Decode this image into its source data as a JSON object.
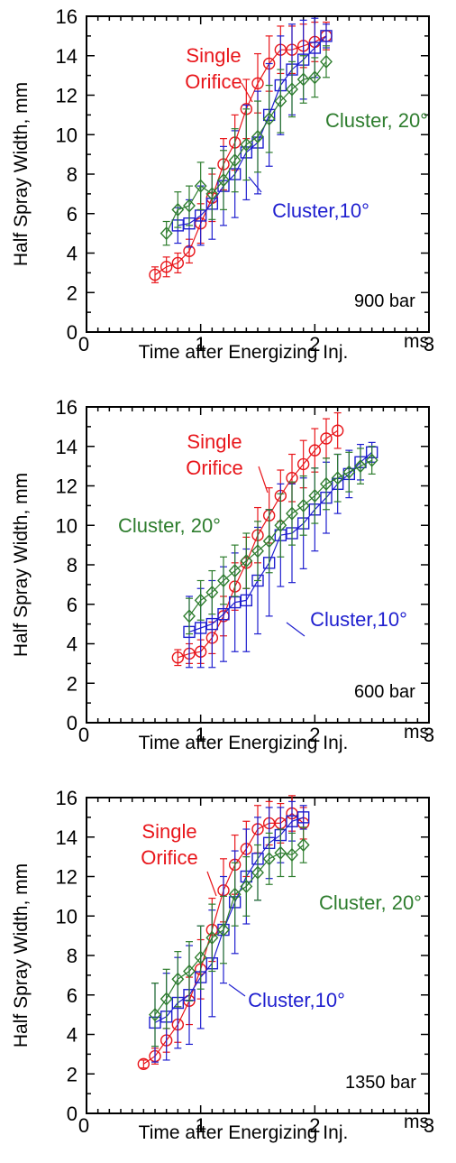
{
  "chart_data": [
    {
      "type": "line",
      "xlabel": "Time after Energizing Inj.",
      "xunit": "ms",
      "ylabel": "Half Spray Width, mm",
      "xlim": [
        0,
        3
      ],
      "ylim": [
        0,
        16
      ],
      "xticks": [
        "0",
        "1",
        "2",
        "3"
      ],
      "yticks": [
        "0",
        "2",
        "4",
        "6",
        "8",
        "10",
        "12",
        "14",
        "16"
      ],
      "condition": "900 bar",
      "annotations": [
        "Single",
        "Orifice",
        "Cluster, 20°",
        "Cluster,10°"
      ],
      "series": [
        {
          "color": "#e8161b",
          "marker": "circle",
          "x": [
            0.6,
            0.7,
            0.8,
            0.9,
            1.0,
            1.1,
            1.2,
            1.3,
            1.4,
            1.5,
            1.6,
            1.7,
            1.8,
            1.9,
            2.0,
            2.1
          ],
          "y": [
            2.9,
            3.3,
            3.5,
            4.1,
            5.5,
            6.8,
            8.5,
            9.6,
            11.3,
            12.6,
            13.6,
            14.3,
            14.3,
            14.5,
            14.7,
            15.0
          ],
          "err": [
            0.4,
            0.5,
            0.5,
            0.6,
            1.0,
            1.2,
            1.3,
            1.4,
            1.5,
            1.5,
            1.4,
            1.2,
            1.2,
            1.1,
            1.0,
            0.7
          ]
        },
        {
          "color": "#1f1fcf",
          "marker": "square",
          "x": [
            0.8,
            0.9,
            1.0,
            1.1,
            1.2,
            1.3,
            1.4,
            1.5,
            1.6,
            1.7,
            1.8,
            1.9,
            2.0,
            2.1
          ],
          "y": [
            5.4,
            5.5,
            5.9,
            6.5,
            7.4,
            8.0,
            9.1,
            9.6,
            11.0,
            12.5,
            13.3,
            13.8,
            14.4,
            15.0
          ],
          "err": [
            0.9,
            1.2,
            1.5,
            1.8,
            2.0,
            2.2,
            2.4,
            2.6,
            2.6,
            2.5,
            2.3,
            2.0,
            1.5,
            0.6
          ]
        },
        {
          "color": "#2e7d2e",
          "marker": "diamond",
          "x": [
            0.7,
            0.8,
            0.9,
            1.0,
            1.1,
            1.2,
            1.3,
            1.4,
            1.5,
            1.6,
            1.7,
            1.8,
            1.9,
            2.0,
            2.1
          ],
          "y": [
            5.0,
            6.2,
            6.4,
            7.4,
            7.0,
            7.7,
            8.7,
            9.5,
            9.9,
            10.8,
            11.7,
            12.3,
            12.8,
            12.9,
            13.7
          ],
          "err": [
            0.6,
            0.9,
            1.0,
            1.2,
            1.3,
            1.5,
            1.6,
            1.8,
            1.8,
            1.7,
            1.6,
            1.4,
            1.2,
            1.0,
            0.8
          ]
        }
      ]
    },
    {
      "type": "line",
      "xlabel": "Time after Energizing Inj.",
      "xunit": "ms",
      "ylabel": "Half  Spray Width, mm",
      "xlim": [
        0,
        3
      ],
      "ylim": [
        0,
        16
      ],
      "xticks": [
        "0",
        "1",
        "2",
        "3"
      ],
      "yticks": [
        "0",
        "2",
        "4",
        "6",
        "8",
        "10",
        "12",
        "14",
        "16"
      ],
      "condition": "600 bar",
      "annotations": [
        "Single",
        "Orifice",
        "Cluster, 20°",
        "Cluster,10°"
      ],
      "series": [
        {
          "color": "#e8161b",
          "marker": "circle",
          "x": [
            0.8,
            0.9,
            1.0,
            1.1,
            1.2,
            1.3,
            1.4,
            1.5,
            1.6,
            1.7,
            1.8,
            1.9,
            2.0,
            2.1,
            2.2
          ],
          "y": [
            3.3,
            3.5,
            3.6,
            4.3,
            5.4,
            6.9,
            8.1,
            9.5,
            10.5,
            11.5,
            12.4,
            13.1,
            13.8,
            14.4,
            14.8
          ],
          "err": [
            0.4,
            0.5,
            0.6,
            0.8,
            1.0,
            1.2,
            1.3,
            1.4,
            1.4,
            1.3,
            1.2,
            1.2,
            1.1,
            1.0,
            0.9
          ]
        },
        {
          "color": "#1f1fcf",
          "marker": "square",
          "x": [
            0.9,
            1.0,
            1.1,
            1.2,
            1.3,
            1.4,
            1.5,
            1.6,
            1.7,
            1.8,
            1.9,
            2.0,
            2.1,
            2.2,
            2.3,
            2.4,
            2.5
          ],
          "y": [
            4.6,
            4.8,
            5.0,
            5.5,
            6.1,
            6.2,
            7.2,
            8.1,
            9.5,
            9.6,
            10.1,
            10.8,
            11.4,
            12.1,
            12.6,
            13.2,
            13.7
          ],
          "err": [
            1.8,
            2.0,
            2.2,
            2.4,
            2.5,
            2.6,
            2.7,
            2.7,
            2.6,
            2.5,
            2.3,
            2.1,
            1.8,
            1.5,
            1.2,
            0.9,
            0.5
          ]
        },
        {
          "color": "#2e7d2e",
          "marker": "diamond",
          "x": [
            0.9,
            1.0,
            1.1,
            1.2,
            1.3,
            1.4,
            1.5,
            1.6,
            1.7,
            1.8,
            1.9,
            2.0,
            2.1,
            2.2,
            2.3,
            2.4,
            2.5
          ],
          "y": [
            5.4,
            6.2,
            6.6,
            7.2,
            7.7,
            8.2,
            8.7,
            9.2,
            10.0,
            10.6,
            11.0,
            11.5,
            12.1,
            12.4,
            12.7,
            13.0,
            13.3
          ],
          "err": [
            0.9,
            1.0,
            1.1,
            1.2,
            1.3,
            1.4,
            1.5,
            1.6,
            1.6,
            1.6,
            1.5,
            1.4,
            1.3,
            1.2,
            1.0,
            0.9,
            0.7
          ]
        }
      ]
    },
    {
      "type": "line",
      "xlabel": "Time after Energizing Inj.",
      "xunit": "ms",
      "ylabel": "Half Spray Width, mm",
      "xlim": [
        0,
        3
      ],
      "ylim": [
        0,
        16
      ],
      "xticks": [
        "0",
        "1",
        "2",
        "3"
      ],
      "yticks": [
        "0",
        "2",
        "4",
        "6",
        "8",
        "10",
        "12",
        "14",
        "16"
      ],
      "condition": "1350 bar",
      "annotations": [
        "Single",
        "Orifice",
        "Cluster, 20°",
        "Cluster,10°"
      ],
      "series": [
        {
          "color": "#e8161b",
          "marker": "circle",
          "x": [
            0.5,
            0.6,
            0.7,
            0.8,
            0.9,
            1.0,
            1.1,
            1.2,
            1.3,
            1.4,
            1.5,
            1.6,
            1.7,
            1.8,
            1.9
          ],
          "y": [
            2.5,
            2.9,
            3.7,
            4.5,
            5.7,
            7.3,
            9.3,
            11.3,
            12.6,
            13.4,
            14.4,
            14.7,
            14.7,
            15.2,
            14.7
          ],
          "err": [
            0.2,
            0.4,
            0.6,
            0.9,
            1.2,
            1.5,
            1.6,
            1.6,
            1.5,
            1.4,
            1.2,
            1.1,
            1.0,
            0.9,
            0.8
          ]
        },
        {
          "color": "#1f1fcf",
          "marker": "square",
          "x": [
            0.6,
            0.7,
            0.8,
            0.9,
            1.0,
            1.1,
            1.2,
            1.3,
            1.4,
            1.5,
            1.6,
            1.7,
            1.8,
            1.9
          ],
          "y": [
            4.6,
            4.9,
            5.6,
            6.0,
            6.9,
            7.6,
            9.3,
            10.7,
            12.0,
            12.9,
            13.7,
            14.1,
            14.8,
            15.0
          ],
          "err": [
            2.0,
            2.2,
            2.3,
            2.5,
            2.6,
            2.7,
            2.7,
            2.6,
            2.4,
            2.1,
            1.8,
            1.4,
            1.0,
            0.6
          ]
        },
        {
          "color": "#2e7d2e",
          "marker": "diamond",
          "x": [
            0.6,
            0.7,
            0.8,
            0.9,
            1.0,
            1.1,
            1.2,
            1.3,
            1.4,
            1.5,
            1.6,
            1.7,
            1.8,
            1.9
          ],
          "y": [
            5.0,
            5.8,
            6.8,
            7.2,
            7.9,
            8.9,
            9.3,
            11.1,
            11.5,
            12.2,
            12.9,
            13.2,
            13.1,
            13.6
          ],
          "err": [
            1.6,
            1.5,
            1.4,
            1.5,
            1.6,
            1.7,
            1.7,
            1.6,
            1.5,
            1.4,
            1.3,
            1.2,
            1.1,
            0.9
          ]
        }
      ]
    }
  ]
}
